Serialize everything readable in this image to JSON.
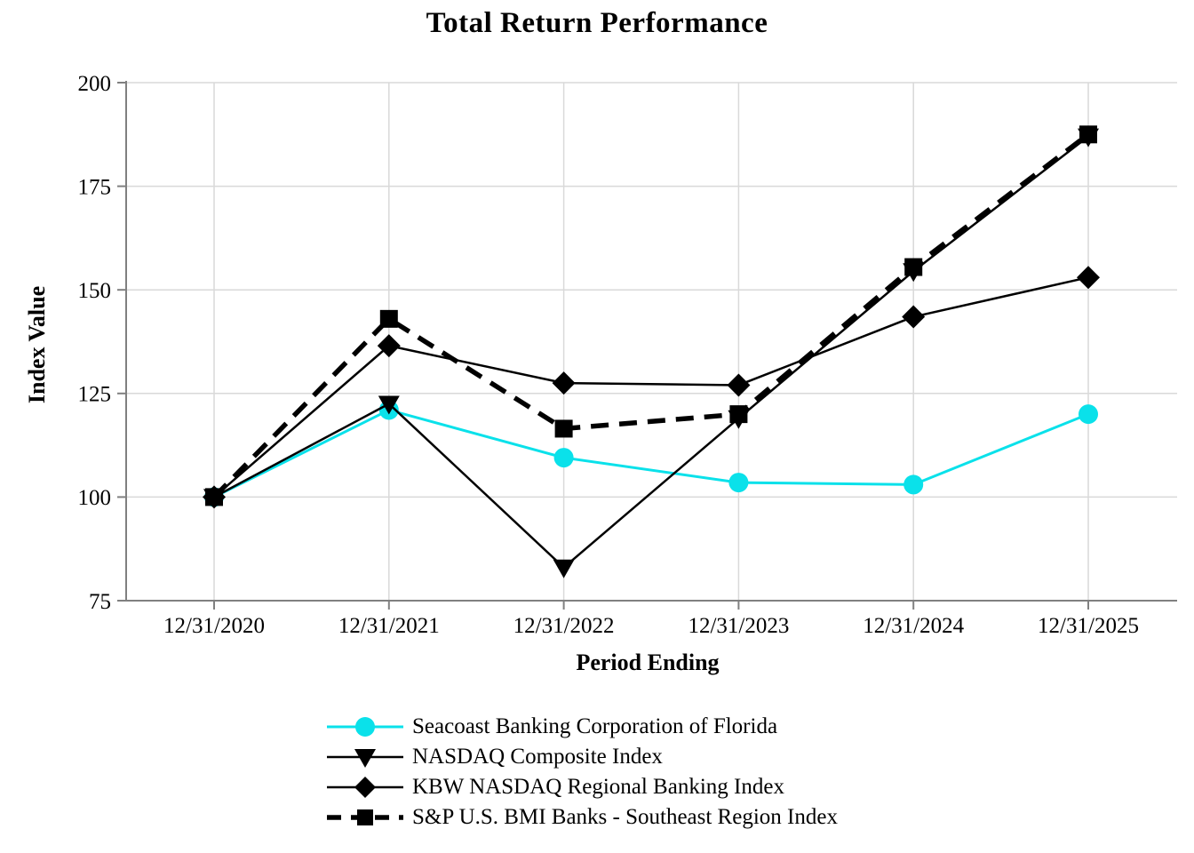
{
  "page_title": "Total Return Performance",
  "chart_data": {
    "type": "line",
    "title": "Total Return Performance",
    "xlabel": "Period Ending",
    "ylabel": "Index Value",
    "categories": [
      "12/31/2020",
      "12/31/2021",
      "12/31/2022",
      "12/31/2023",
      "12/31/2024",
      "12/31/2025"
    ],
    "yticks": [
      75,
      100,
      125,
      150,
      175,
      200
    ],
    "ylim": [
      75,
      200
    ],
    "grid": true,
    "legend_position": "bottom",
    "axis_color": "#808080",
    "grid_color": "#d9d9d9",
    "series": [
      {
        "name": "Seacoast Banking Corporation of Florida",
        "color": "#0ae1ea",
        "marker": "circle",
        "line_style": "solid",
        "values": [
          100,
          121,
          109.5,
          103.5,
          103,
          120
        ]
      },
      {
        "name": "NASDAQ Composite Index",
        "color": "#000000",
        "marker": "triangle-down",
        "line_style": "solid",
        "values": [
          100,
          122.5,
          83,
          119,
          154.5,
          187
        ]
      },
      {
        "name": "KBW NASDAQ Regional Banking Index",
        "color": "#000000",
        "marker": "diamond",
        "line_style": "solid",
        "values": [
          100,
          136.5,
          127.5,
          127,
          143.5,
          153
        ]
      },
      {
        "name": "S&P U.S. BMI Banks - Southeast Region Index",
        "color": "#000000",
        "marker": "square",
        "line_style": "dashed",
        "values": [
          100,
          143,
          116.5,
          120,
          155.5,
          187.5
        ]
      }
    ]
  }
}
